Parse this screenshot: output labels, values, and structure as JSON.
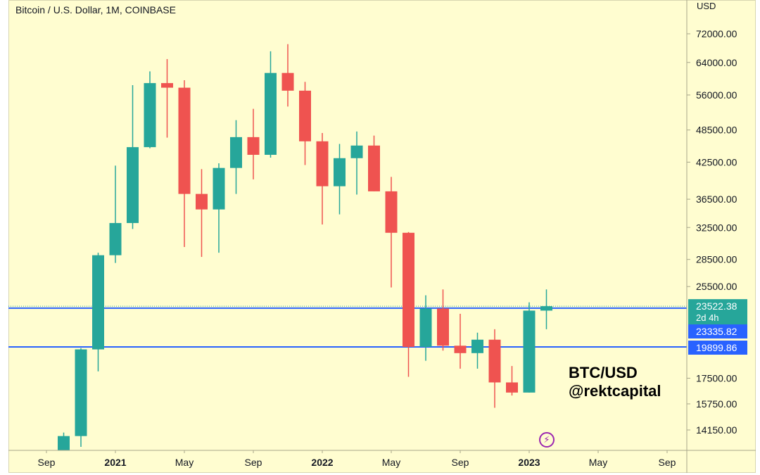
{
  "header": {
    "title": "Bitcoin / U.S. Dollar, 1M, COINBASE"
  },
  "watermark": {
    "line1": "BTC/USD",
    "line2": "@rektcapital"
  },
  "icons": {
    "lightning": "lightning-icon"
  },
  "colors": {
    "up": "#26a69a",
    "down": "#ef5350",
    "level_line": "#2962ff",
    "background": "#fffdd0",
    "axis_text": "#131722"
  },
  "chart_data": {
    "type": "candlestick",
    "title": "Bitcoin / U.S. Dollar, 1M, COINBASE",
    "currency_label": "USD",
    "y_scale": "log",
    "ylim": [
      12000,
      80000
    ],
    "y_ticks": [
      "72000.00",
      "64000.00",
      "56000.00",
      "48500.00",
      "42500.00",
      "36500.00",
      "32500.00",
      "28500.00",
      "25500.00",
      "17500.00",
      "15750.00",
      "14150.00"
    ],
    "x_ticks": [
      {
        "label": "Sep",
        "date": "2020-09",
        "bold": false
      },
      {
        "label": "2021",
        "date": "2021-01",
        "bold": true
      },
      {
        "label": "May",
        "date": "2021-05",
        "bold": false
      },
      {
        "label": "Sep",
        "date": "2021-09",
        "bold": false
      },
      {
        "label": "2022",
        "date": "2022-01",
        "bold": true
      },
      {
        "label": "May",
        "date": "2022-05",
        "bold": false
      },
      {
        "label": "Sep",
        "date": "2022-09",
        "bold": false
      },
      {
        "label": "2023",
        "date": "2023-01",
        "bold": true
      },
      {
        "label": "May",
        "date": "2023-05",
        "bold": false
      },
      {
        "label": "Sep",
        "date": "2023-09",
        "bold": false
      }
    ],
    "candles": [
      {
        "date": "2020-10",
        "open": 10800,
        "high": 14000,
        "low": 10500,
        "close": 13800
      },
      {
        "date": "2020-11",
        "open": 13800,
        "high": 19800,
        "low": 13200,
        "close": 19700
      },
      {
        "date": "2020-12",
        "open": 19700,
        "high": 29300,
        "low": 18000,
        "close": 29000
      },
      {
        "date": "2021-01",
        "open": 29000,
        "high": 41900,
        "low": 28100,
        "close": 33100
      },
      {
        "date": "2021-02",
        "open": 33100,
        "high": 58300,
        "low": 32300,
        "close": 45200
      },
      {
        "date": "2021-03",
        "open": 45200,
        "high": 61700,
        "low": 45000,
        "close": 58800
      },
      {
        "date": "2021-04",
        "open": 58800,
        "high": 64900,
        "low": 47000,
        "close": 57700
      },
      {
        "date": "2021-05",
        "open": 57700,
        "high": 59500,
        "low": 30000,
        "close": 37300
      },
      {
        "date": "2021-06",
        "open": 37300,
        "high": 41300,
        "low": 28800,
        "close": 35000
      },
      {
        "date": "2021-07",
        "open": 35000,
        "high": 42300,
        "low": 29300,
        "close": 41500
      },
      {
        "date": "2021-08",
        "open": 41500,
        "high": 50500,
        "low": 37300,
        "close": 47100
      },
      {
        "date": "2021-09",
        "open": 47100,
        "high": 52900,
        "low": 39600,
        "close": 43800
      },
      {
        "date": "2021-10",
        "open": 43800,
        "high": 67000,
        "low": 43300,
        "close": 61300
      },
      {
        "date": "2021-11",
        "open": 61300,
        "high": 69000,
        "low": 53400,
        "close": 57000
      },
      {
        "date": "2021-12",
        "open": 57000,
        "high": 59100,
        "low": 42000,
        "close": 46300
      },
      {
        "date": "2022-01",
        "open": 46300,
        "high": 47900,
        "low": 32900,
        "close": 38500
      },
      {
        "date": "2022-02",
        "open": 38500,
        "high": 45800,
        "low": 34300,
        "close": 43200
      },
      {
        "date": "2022-03",
        "open": 43200,
        "high": 48200,
        "low": 37200,
        "close": 45500
      },
      {
        "date": "2022-04",
        "open": 45500,
        "high": 47400,
        "low": 37700,
        "close": 37700
      },
      {
        "date": "2022-05",
        "open": 37700,
        "high": 40000,
        "low": 25400,
        "close": 31800
      },
      {
        "date": "2022-06",
        "open": 31800,
        "high": 31900,
        "low": 17600,
        "close": 19900
      },
      {
        "date": "2022-07",
        "open": 19900,
        "high": 24600,
        "low": 18800,
        "close": 23300
      },
      {
        "date": "2022-08",
        "open": 23300,
        "high": 25200,
        "low": 19600,
        "close": 20000
      },
      {
        "date": "2022-09",
        "open": 20000,
        "high": 22800,
        "low": 18200,
        "close": 19400
      },
      {
        "date": "2022-10",
        "open": 19400,
        "high": 21100,
        "low": 18200,
        "close": 20500
      },
      {
        "date": "2022-11",
        "open": 20500,
        "high": 21400,
        "low": 15500,
        "close": 17200
      },
      {
        "date": "2022-12",
        "open": 17200,
        "high": 18400,
        "low": 16300,
        "close": 16500
      },
      {
        "date": "2023-01",
        "open": 16500,
        "high": 23900,
        "low": 16500,
        "close": 23100
      },
      {
        "date": "2023-02",
        "open": 23100,
        "high": 25200,
        "low": 21400,
        "close": 23522
      }
    ],
    "horizontal_levels": [
      {
        "value": 23335.82,
        "label": "23335.82"
      },
      {
        "value": 19899.86,
        "label": "19899.86"
      }
    ],
    "current_price": {
      "value": 23522.38,
      "label": "23522.38",
      "countdown": "2d 4h"
    }
  }
}
